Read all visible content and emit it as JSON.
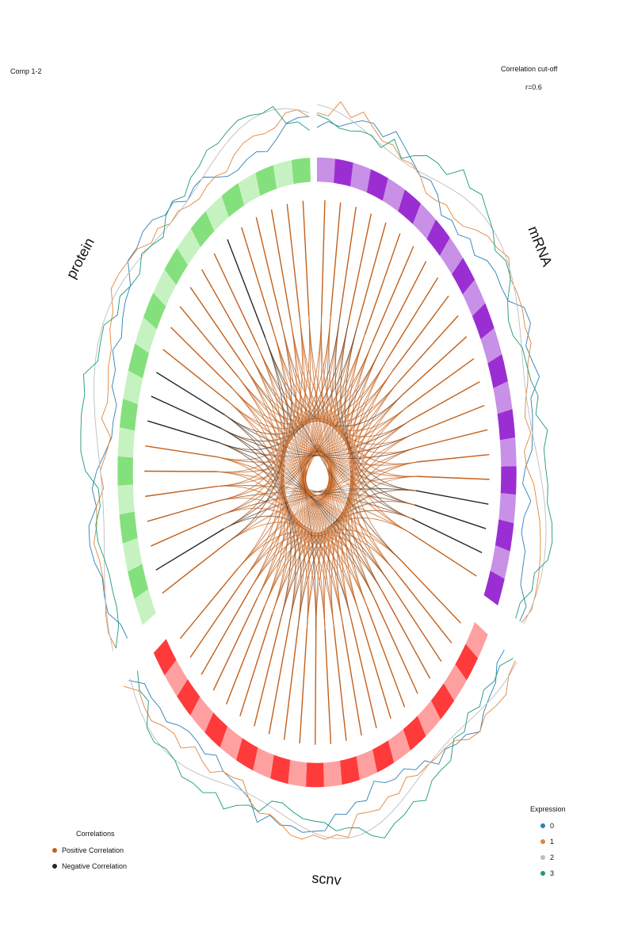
{
  "header": {
    "comp_label": "Comp 1-2",
    "cutoff_title": "Correlation cut-off",
    "cutoff_value": "r=0.6"
  },
  "blocks": [
    {
      "name": "mRNA",
      "label": "mRNA",
      "color_light": "#c890e6",
      "color_dark": "#9a2ed2"
    },
    {
      "name": "scnv",
      "label": "scnv",
      "color_light": "#ffa0a0",
      "color_dark": "#ff3a3a"
    },
    {
      "name": "protein",
      "label": "protein",
      "color_light": "#c6f2c2",
      "color_dark": "#84e07c"
    }
  ],
  "correlations_legend": {
    "title": "Correlations",
    "items": [
      {
        "label": "Positive Correlation",
        "color": "#c2601b"
      },
      {
        "label": "Negative Correlation",
        "color": "#262626"
      }
    ]
  },
  "expression_legend": {
    "title": "Expression",
    "items": [
      {
        "label": "0",
        "color": "#2c7fb8"
      },
      {
        "label": "1",
        "color": "#e0863a"
      },
      {
        "label": "2",
        "color": "#bdbdbd"
      },
      {
        "label": "3",
        "color": "#1a9a7a"
      }
    ]
  },
  "colors": {
    "positive": "#c2601b",
    "negative": "#262626"
  }
}
